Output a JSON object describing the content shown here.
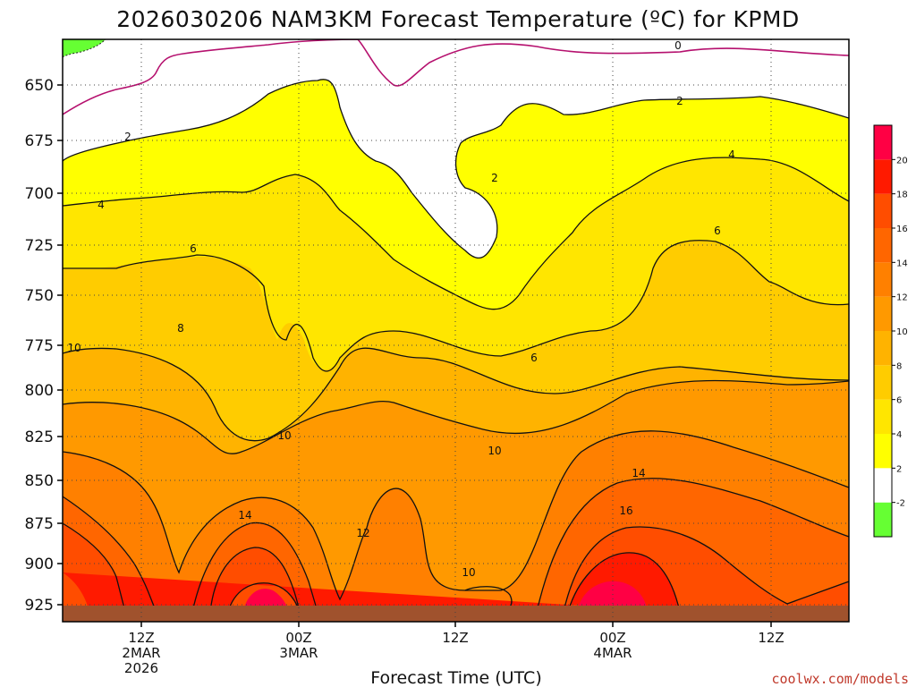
{
  "chart_data": {
    "type": "heatmap",
    "title": "2026030206 NAM3KM Forecast Temperature (ºC) for KPMD",
    "xlabel": "Forecast Time (UTC)",
    "ylabel": "",
    "credit": "coolwx.com/models",
    "y_ticks": [
      "650",
      "675",
      "700",
      "725",
      "750",
      "775",
      "800",
      "825",
      "850",
      "875",
      "900",
      "925"
    ],
    "x_ticks": [
      {
        "lines": [
          "12Z",
          "2MAR",
          "2026"
        ]
      },
      {
        "lines": [
          "00Z",
          "3MAR"
        ]
      },
      {
        "lines": [
          "12Z"
        ]
      },
      {
        "lines": [
          "00Z",
          "4MAR"
        ]
      },
      {
        "lines": [
          "12Z"
        ]
      }
    ],
    "colorbar": {
      "ticks": [
        "-2",
        "2",
        "4",
        "6",
        "8",
        "10",
        "12",
        "14",
        "16",
        "18",
        "20"
      ],
      "colors": [
        "#66ff33",
        "#ffffff",
        "#ffff00",
        "#ffe600",
        "#ffcc00",
        "#ffb300",
        "#ff9900",
        "#ff8000",
        "#ff6600",
        "#ff4d00",
        "#ff1a00",
        "#ff0044"
      ]
    },
    "contour_labels": [
      "0",
      "2",
      "2",
      "2",
      "4",
      "4",
      "6",
      "6",
      "6",
      "8",
      "10",
      "10",
      "10",
      "10",
      "12",
      "14",
      "14",
      "16"
    ],
    "colors": {
      "terrain": "#a0522d",
      "zero_line": "#b5106e",
      "negative": "#66ff33"
    }
  }
}
